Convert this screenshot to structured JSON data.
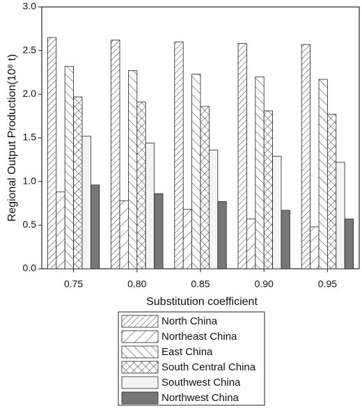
{
  "chart_data": {
    "type": "bar",
    "xlabel": "Substitution coefficient",
    "ylabel": "Regional Output Production(10⁸ t)",
    "categories": [
      "0.75",
      "0.80",
      "0.85",
      "0.90",
      "0.95"
    ],
    "series": [
      {
        "name": "North China",
        "color": "#ffffff",
        "hatch": "////",
        "values": [
          2.65,
          2.62,
          2.6,
          2.58,
          2.57
        ]
      },
      {
        "name": "Northeast China",
        "color": "#ffffff",
        "hatch": "//",
        "values": [
          0.88,
          0.78,
          0.68,
          0.57,
          0.48
        ]
      },
      {
        "name": "East China",
        "color": "#ffffff",
        "hatch": "\\\\",
        "values": [
          2.32,
          2.27,
          2.23,
          2.2,
          2.17
        ]
      },
      {
        "name": "South Central China",
        "color": "#ffffff",
        "hatch": "xx",
        "values": [
          1.97,
          1.91,
          1.86,
          1.81,
          1.77
        ]
      },
      {
        "name": "Southwest China",
        "color": "#f4f4f4",
        "values": [
          1.52,
          1.44,
          1.36,
          1.29,
          1.22
        ]
      },
      {
        "name": "Northwest China",
        "color": "#777777",
        "values": [
          0.96,
          0.86,
          0.77,
          0.67,
          0.57
        ]
      }
    ],
    "ylim": [
      0,
      3
    ],
    "yticks": [
      {
        "value": 0,
        "label": "0.0"
      },
      0.5,
      {
        "value": 1,
        "label": "1.0"
      },
      1.5,
      {
        "value": 2,
        "label": "2.0"
      },
      2.5,
      {
        "value": 3,
        "label": "3.0"
      }
    ]
  }
}
